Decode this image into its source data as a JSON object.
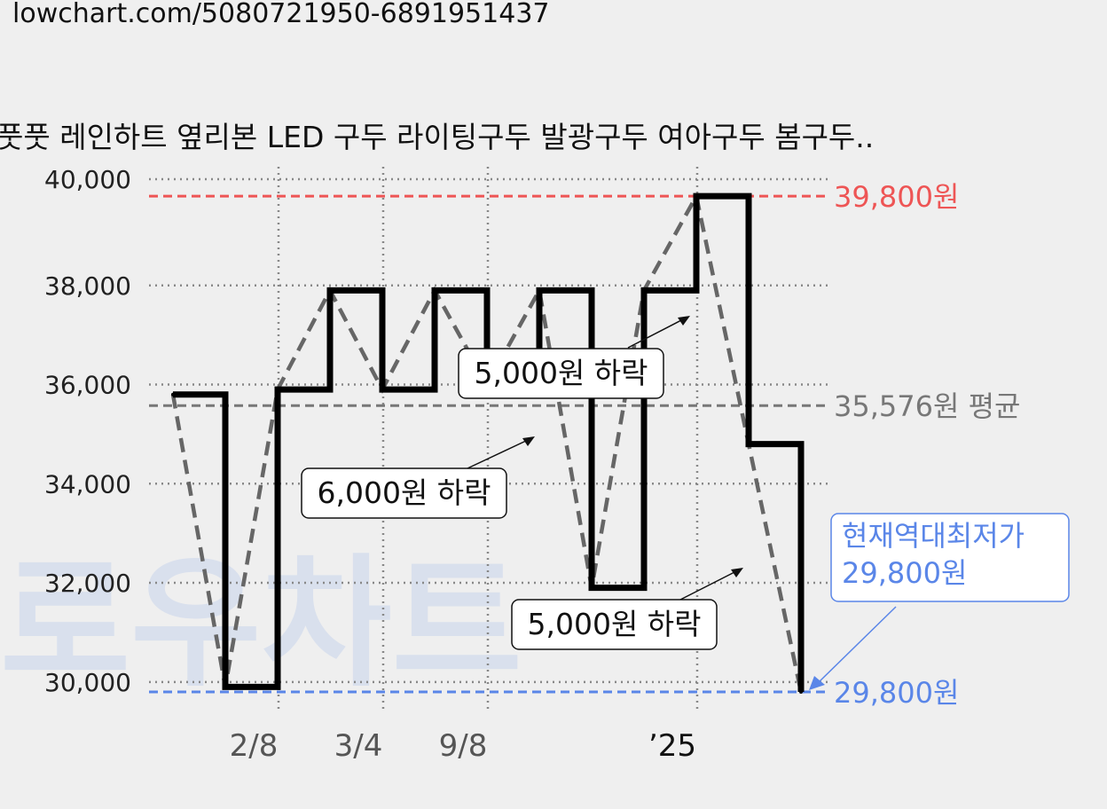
{
  "url": "lowchart.com/5080721950-6891951437",
  "title": "풋풋 레인하트 옆리본 LED 구두 라이팅구두 발광구두 여아구두 봄구두..",
  "watermark": "로우차트",
  "colors": {
    "max": "#ee5555",
    "avg": "#777777",
    "min": "#5a86e8",
    "price_line": "#000000",
    "trend_line": "#666666"
  },
  "chart_data": {
    "type": "line",
    "step": true,
    "ylim": [
      29800,
      40000
    ],
    "yticks": [
      30000,
      32000,
      34000,
      36000,
      38000,
      40000
    ],
    "ytick_labels": [
      "30,000",
      "32,000",
      "34,000",
      "36,000",
      "38,000",
      "40,000"
    ],
    "x_index_range": [
      -0.5,
      12.5
    ],
    "xticks": [
      {
        "index": 2,
        "label": "2/8"
      },
      {
        "index": 4,
        "label": "3/4"
      },
      {
        "index": 6,
        "label": "9/8"
      },
      {
        "index": 10,
        "label": "’25",
        "year": true
      }
    ],
    "series": [
      {
        "values": [
          35800,
          29900,
          35900,
          37900,
          35900,
          37900,
          36000,
          37900,
          31900,
          37900,
          39800,
          34800,
          29800
        ]
      }
    ],
    "reference_lines": [
      {
        "key": "max",
        "value": 39800,
        "label": "39,800원"
      },
      {
        "key": "avg",
        "value": 35576,
        "label": "35,576원 평균"
      },
      {
        "key": "min",
        "value": 29800,
        "label": "29,800원"
      }
    ],
    "annotations": [
      {
        "text": "5,000원 하락",
        "from_index": 10,
        "arrow_value": 37400
      },
      {
        "text": "6,000원 하락",
        "from_index": 7,
        "arrow_value": 34800
      },
      {
        "text": "5,000원 하락",
        "from_index": 11,
        "arrow_value": 32300
      }
    ],
    "current_label": [
      "현재역대최저가",
      "29,800원"
    ]
  }
}
